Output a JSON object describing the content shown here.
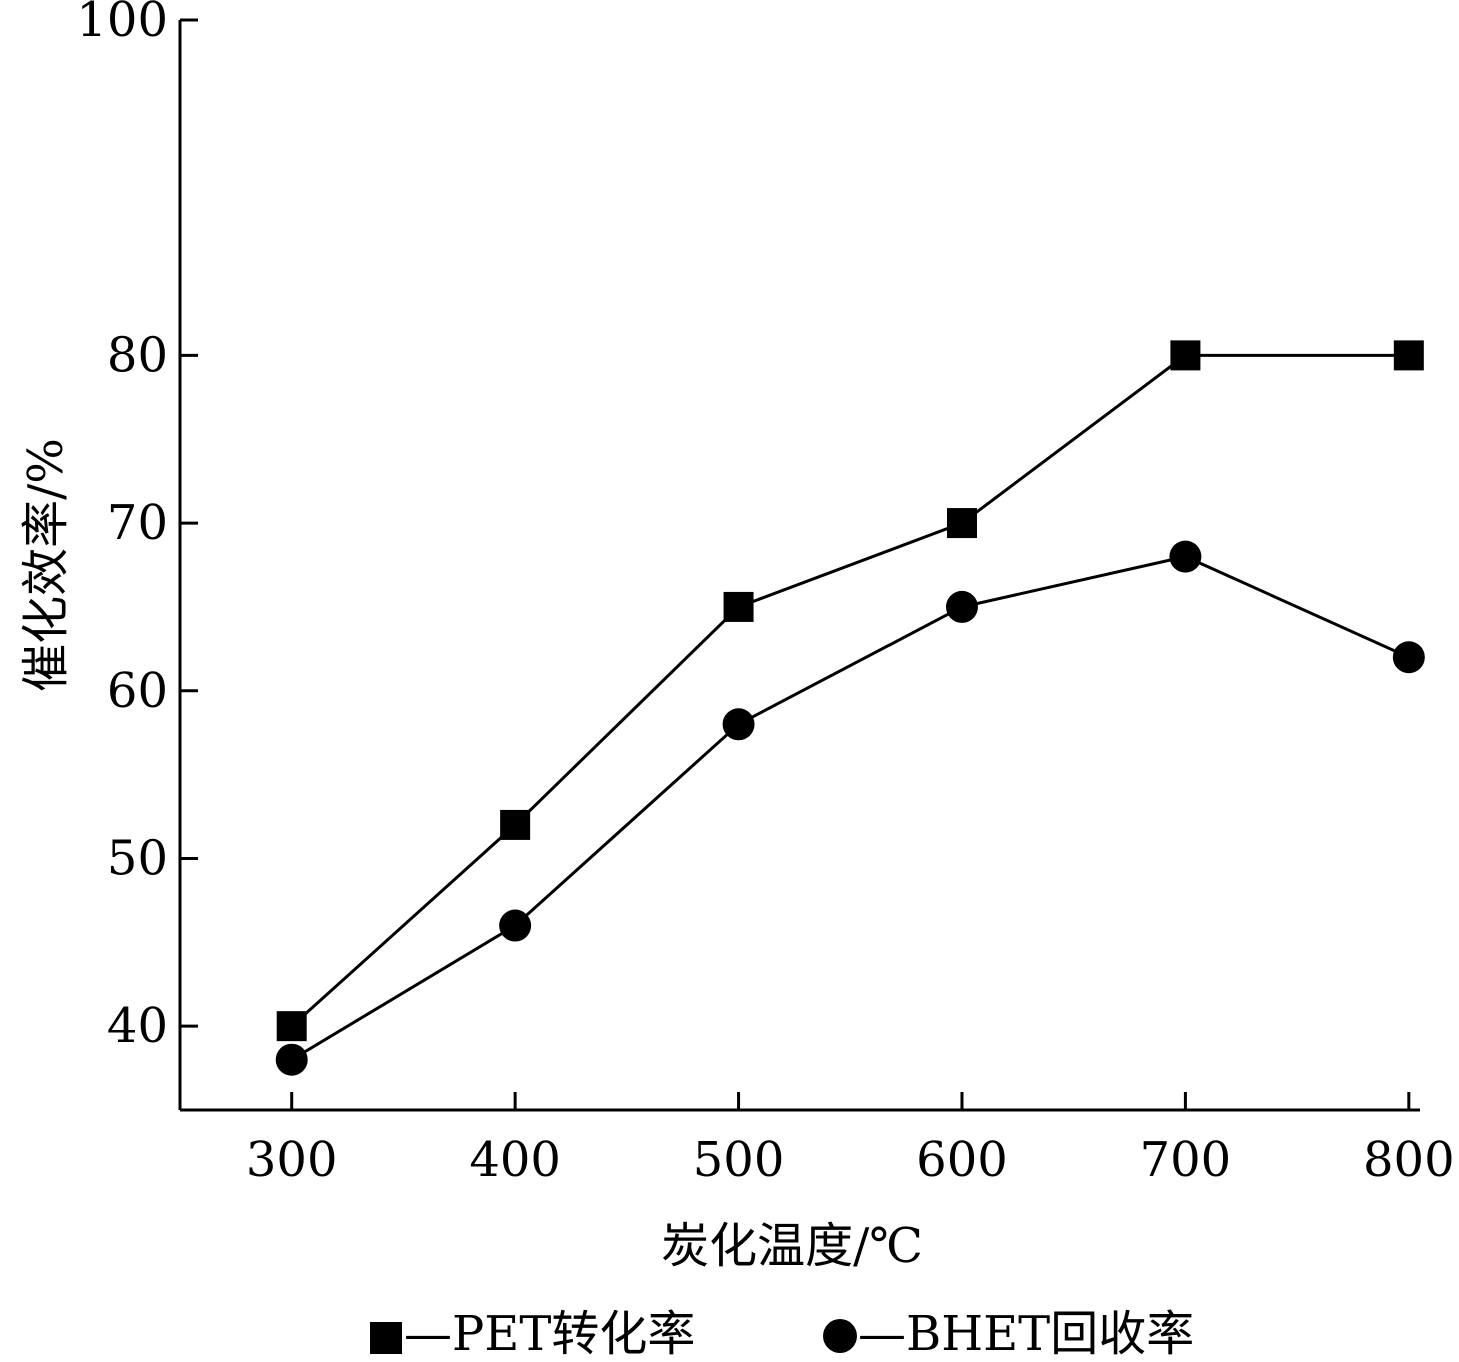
{
  "chart_data": {
    "type": "line",
    "xlabel": "炭化温度/℃",
    "ylabel": "催化效率/%",
    "x": [
      300,
      400,
      500,
      600,
      700,
      800
    ],
    "xticks": [
      "300",
      "400",
      "500",
      "600",
      "700",
      "800"
    ],
    "yticks": [
      "40",
      "50",
      "60",
      "70",
      "80",
      "100"
    ],
    "ytick_values": [
      40,
      50,
      60,
      70,
      80,
      100
    ],
    "xlim": [
      250,
      805
    ],
    "ylim": [
      35,
      100
    ],
    "grid": false,
    "legend_position": "bottom",
    "series": [
      {
        "name": "PET转化率",
        "marker": "square",
        "values": [
          40,
          52,
          65,
          70,
          80,
          80
        ]
      },
      {
        "name": "BHET回收率",
        "marker": "circle",
        "values": [
          38,
          46,
          58,
          65,
          68,
          62
        ]
      }
    ],
    "legend_labels": [
      "—PET转化率",
      "—BHET回收率"
    ],
    "color": "#000000"
  }
}
